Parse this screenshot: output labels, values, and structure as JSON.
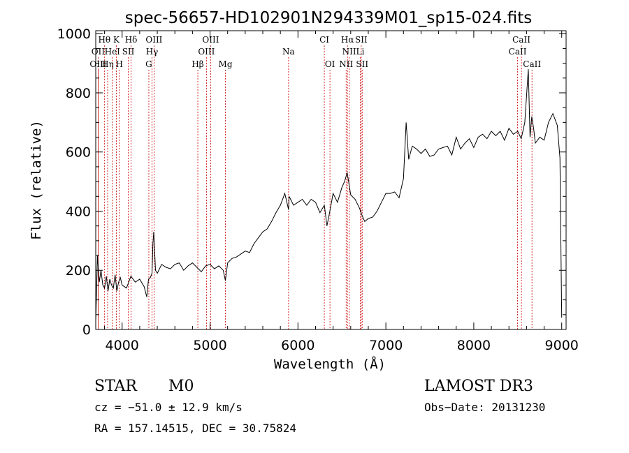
{
  "chart_data": {
    "type": "line",
    "title": "spec-56657-HD102901N294339M01_sp15-024.fits",
    "xlabel": "Wavelength (Å)",
    "ylabel": "Flux (relative)",
    "xlim": [
      3700,
      9050
    ],
    "ylim": [
      0,
      1010
    ],
    "xticks": [
      "4000",
      "5000",
      "6000",
      "7000",
      "8000",
      "9000"
    ],
    "yticks": [
      "0",
      "200",
      "400",
      "600",
      "800",
      "1000"
    ],
    "grid": false,
    "line_color": "#000000",
    "marker_color": "#cc0000",
    "spectral_lines": [
      {
        "label": "Hθ",
        "x": 3798,
        "row": 0
      },
      {
        "label": "K",
        "x": 3934,
        "row": 0
      },
      {
        "label": "Hδ",
        "x": 4102,
        "row": 0
      },
      {
        "label": "OIII",
        "x": 4363,
        "row": 0
      },
      {
        "label": "OIII",
        "x": 5007,
        "row": 0
      },
      {
        "label": "CI",
        "x": 6300,
        "row": 0
      },
      {
        "label": "Hα",
        "x": 6563,
        "row": 0
      },
      {
        "label": "SII",
        "x": 6720,
        "row": 0
      },
      {
        "label": "CaII",
        "x": 8542,
        "row": 0
      },
      {
        "label": "OII",
        "x": 3727,
        "row": 1
      },
      {
        "label": "HeI",
        "x": 3889,
        "row": 1
      },
      {
        "label": "SII",
        "x": 4070,
        "row": 1
      },
      {
        "label": "Hγ",
        "x": 4340,
        "row": 1
      },
      {
        "label": "OIII",
        "x": 4959,
        "row": 1
      },
      {
        "label": "Na",
        "x": 5893,
        "row": 1
      },
      {
        "label": "NII",
        "x": 6583,
        "row": 1
      },
      {
        "label": "Li",
        "x": 6708,
        "row": 1
      },
      {
        "label": "CaII",
        "x": 8498,
        "row": 1
      },
      {
        "label": "OIII",
        "x": 3727,
        "row": 2
      },
      {
        "label": "Hη",
        "x": 3835,
        "row": 2
      },
      {
        "label": "H",
        "x": 3968,
        "row": 2
      },
      {
        "label": "G",
        "x": 4304,
        "row": 2
      },
      {
        "label": "Hβ",
        "x": 4861,
        "row": 2
      },
      {
        "label": "Mg",
        "x": 5175,
        "row": 2
      },
      {
        "label": "OI",
        "x": 6364,
        "row": 2
      },
      {
        "label": "NII",
        "x": 6548,
        "row": 2
      },
      {
        "label": "SII",
        "x": 6731,
        "row": 2
      },
      {
        "label": "CaII",
        "x": 8662,
        "row": 2
      }
    ],
    "x": [
      3700,
      3720,
      3740,
      3760,
      3780,
      3800,
      3820,
      3840,
      3860,
      3880,
      3900,
      3920,
      3940,
      3960,
      3980,
      4000,
      4050,
      4100,
      4150,
      4200,
      4250,
      4280,
      4300,
      4320,
      4340,
      4350,
      4360,
      4380,
      4400,
      4450,
      4500,
      4550,
      4600,
      4650,
      4700,
      4750,
      4800,
      4850,
      4900,
      4950,
      5000,
      5050,
      5100,
      5150,
      5175,
      5200,
      5250,
      5300,
      5350,
      5400,
      5450,
      5500,
      5550,
      5600,
      5650,
      5700,
      5750,
      5800,
      5850,
      5893,
      5900,
      5950,
      6000,
      6050,
      6100,
      6150,
      6200,
      6250,
      6300,
      6330,
      6360,
      6400,
      6450,
      6500,
      6530,
      6560,
      6600,
      6650,
      6700,
      6730,
      6760,
      6800,
      6850,
      6900,
      6950,
      7000,
      7050,
      7100,
      7150,
      7200,
      7230,
      7260,
      7300,
      7350,
      7400,
      7450,
      7500,
      7550,
      7600,
      7650,
      7700,
      7750,
      7800,
      7850,
      7900,
      7950,
      8000,
      8050,
      8100,
      8150,
      8200,
      8250,
      8300,
      8350,
      8400,
      8450,
      8500,
      8540,
      8580,
      8620,
      8640,
      8660,
      8680,
      8700,
      8750,
      8800,
      8850,
      8900,
      8950,
      8980,
      9000
    ],
    "values": [
      30,
      250,
      160,
      200,
      150,
      140,
      180,
      130,
      170,
      150,
      140,
      185,
      130,
      160,
      175,
      150,
      140,
      180,
      160,
      170,
      145,
      110,
      170,
      175,
      190,
      290,
      330,
      200,
      190,
      220,
      210,
      205,
      220,
      225,
      200,
      215,
      225,
      210,
      195,
      215,
      220,
      205,
      215,
      200,
      165,
      225,
      240,
      245,
      255,
      265,
      260,
      290,
      310,
      330,
      340,
      365,
      395,
      420,
      460,
      405,
      450,
      420,
      430,
      440,
      420,
      440,
      430,
      395,
      420,
      350,
      395,
      460,
      430,
      480,
      500,
      530,
      455,
      440,
      410,
      385,
      365,
      375,
      380,
      400,
      430,
      460,
      460,
      465,
      445,
      510,
      700,
      575,
      620,
      610,
      595,
      610,
      585,
      590,
      610,
      615,
      620,
      590,
      650,
      610,
      630,
      645,
      615,
      650,
      660,
      645,
      670,
      655,
      670,
      640,
      680,
      660,
      670,
      645,
      700,
      880,
      650,
      720,
      680,
      630,
      650,
      640,
      700,
      730,
      690,
      580,
      40
    ]
  },
  "info": {
    "class": "STAR",
    "subclass": "M0",
    "survey": "LAMOST DR3",
    "cz": "cz = −51.0 ± 12.9 km/s",
    "obs_date": "Obs−Date: 20131230",
    "radec": "RA = 157.14515, DEC =  30.75824"
  }
}
